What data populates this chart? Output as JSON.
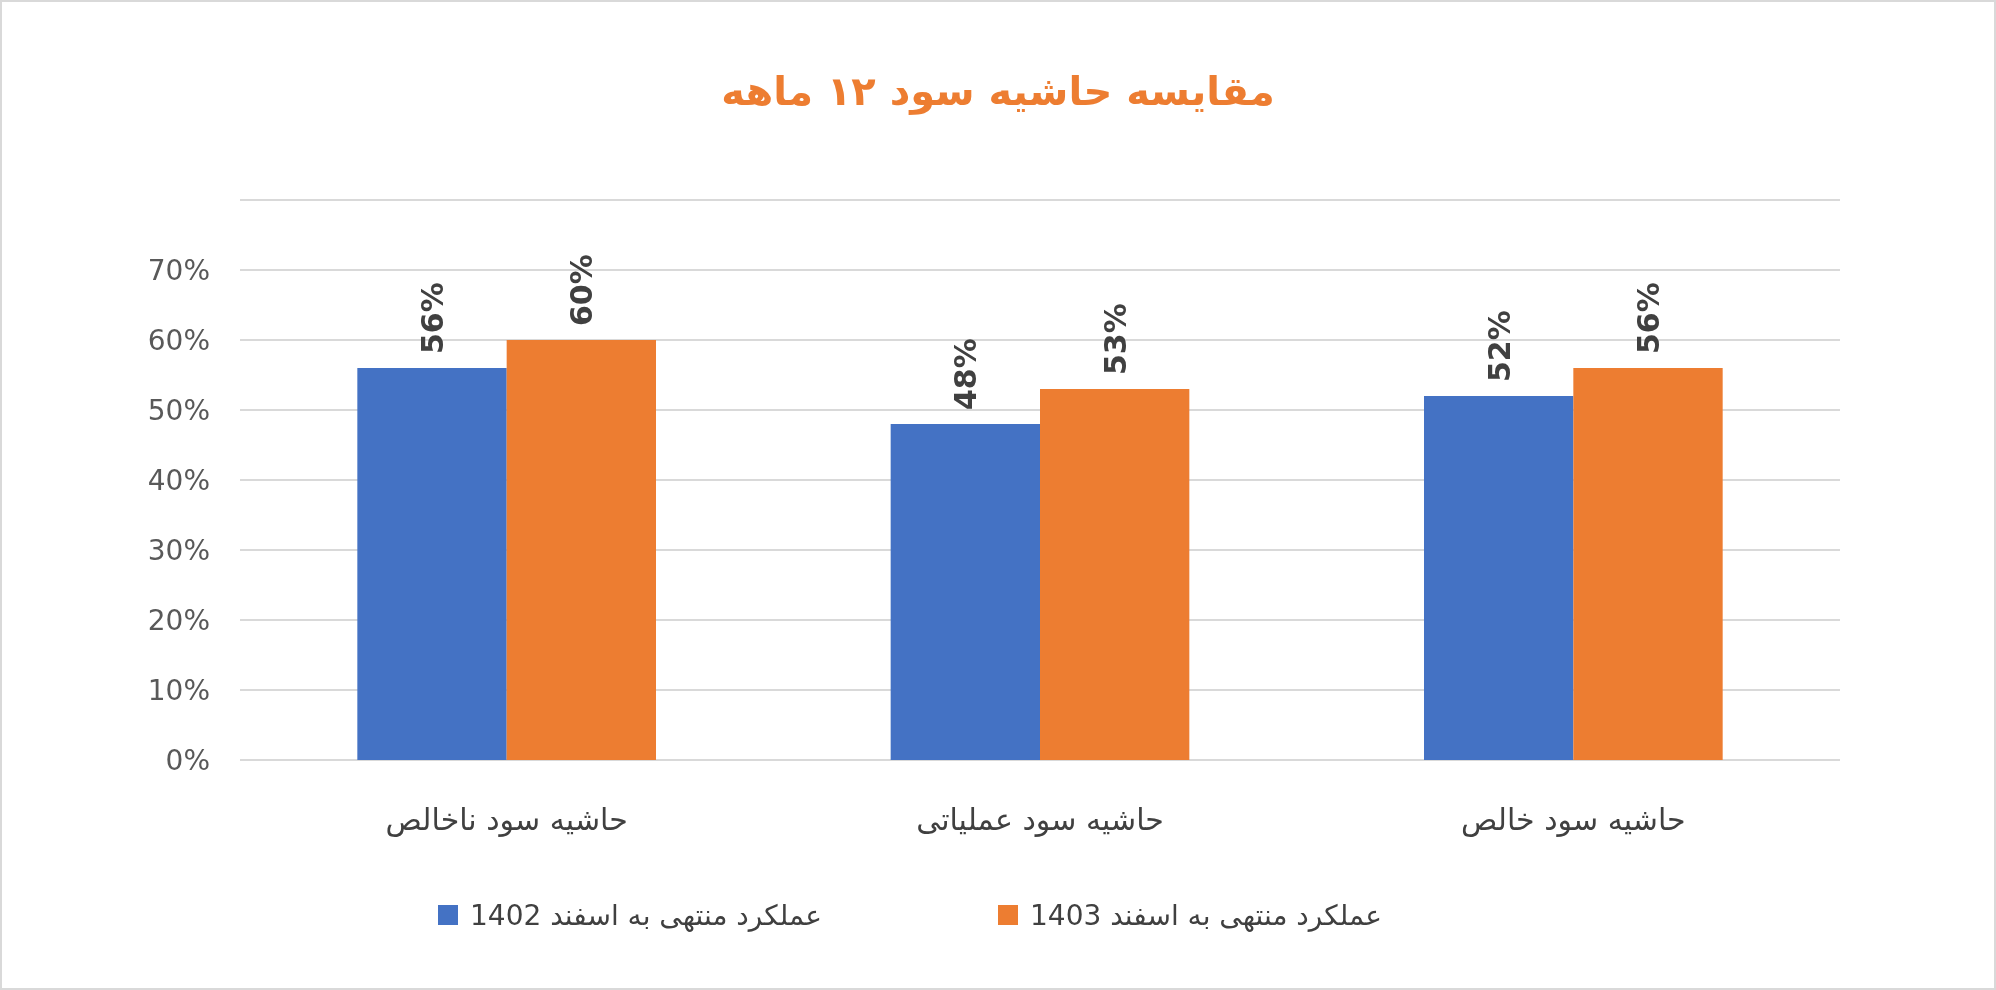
{
  "chart_data": {
    "type": "bar",
    "title": "مقایسه حاشیه سود ۱۲ ماهه",
    "categories": [
      "حاشیه سود ناخالص",
      "حاشیه سود عملیاتی",
      "حاشیه سود خالص"
    ],
    "series": [
      {
        "name": "عملکرد منتهی به اسفند 1402",
        "color": "#4472c4",
        "values": [
          56,
          48,
          52
        ],
        "value_labels": [
          "56%",
          "48%",
          "52%"
        ]
      },
      {
        "name": "عملکرد منتهی به اسفند 1403",
        "color": "#ed7d31",
        "values": [
          60,
          53,
          56
        ],
        "value_labels": [
          "60%",
          "53%",
          "56%"
        ]
      }
    ],
    "ylim": [
      0,
      80
    ],
    "yticks": [
      {
        "value": 0,
        "label": "0%"
      },
      {
        "value": 10,
        "label": "10%"
      },
      {
        "value": 20,
        "label": "20%"
      },
      {
        "value": 30,
        "label": "30%"
      },
      {
        "value": 40,
        "label": "40%"
      },
      {
        "value": 50,
        "label": "50%"
      },
      {
        "value": 60,
        "label": "60%"
      },
      {
        "value": 70,
        "label": "70%"
      },
      {
        "value": 80,
        "label": null
      }
    ],
    "grid": "y",
    "legend": "bottom"
  }
}
